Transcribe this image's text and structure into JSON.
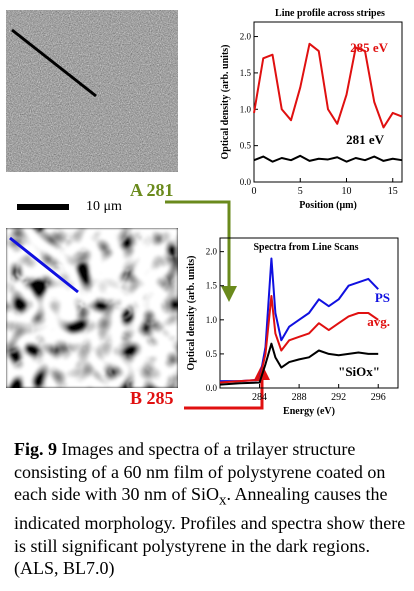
{
  "figure": {
    "label_a": "A 281",
    "label_b": "B 285",
    "scale_bar_label": "10 μm",
    "colors": {
      "red": "#e01010",
      "blue": "#1010e0",
      "olive": "#6a8a1c",
      "black": "#000000"
    }
  },
  "caption": {
    "label": "Fig. 9",
    "text_before": " Images and spectra of a trilayer structure consisting of a 60 nm film of polystyrene coated on each side with 30 nm of SiO",
    "sub": "x",
    "text_after": ". Annealing causes the indicated morphology. Profiles and spectra show there is still significant polystyrene in the dark regions. (ALS, BL7.0)"
  },
  "chart_data": [
    {
      "type": "line",
      "title": "Line profile across stripes",
      "xlabel": "Position (μm)",
      "ylabel": "Optical density (arb. units)",
      "xlim": [
        0,
        16
      ],
      "ylim": [
        0,
        2.2
      ],
      "x_ticks": [
        0,
        5,
        10,
        15
      ],
      "y_ticks": [
        0,
        0.5,
        1.0,
        1.5,
        2.0
      ],
      "series": [
        {
          "name": "285 eV",
          "color": "#e01010",
          "x": [
            0,
            1,
            2,
            3,
            4,
            5,
            6,
            7,
            8,
            9,
            10,
            11,
            12,
            13,
            14,
            15,
            16
          ],
          "y": [
            0.95,
            1.7,
            1.75,
            1.0,
            0.85,
            1.3,
            1.9,
            1.8,
            1.0,
            0.8,
            1.2,
            1.85,
            1.8,
            1.1,
            0.75,
            0.95,
            0.9
          ]
        },
        {
          "name": "281 eV",
          "color": "#000000",
          "x": [
            0,
            1,
            2,
            3,
            4,
            5,
            6,
            7,
            8,
            9,
            10,
            11,
            12,
            13,
            14,
            15,
            16
          ],
          "y": [
            0.3,
            0.35,
            0.28,
            0.33,
            0.3,
            0.36,
            0.29,
            0.32,
            0.31,
            0.34,
            0.28,
            0.33,
            0.3,
            0.35,
            0.29,
            0.32,
            0.3
          ]
        }
      ]
    },
    {
      "type": "line",
      "title": "Spectra from Line Scans",
      "xlabel": "Energy (eV)",
      "ylabel": "Optical density (arb. units)",
      "xlim": [
        280,
        298
      ],
      "ylim": [
        0,
        2.2
      ],
      "x_ticks": [
        284,
        288,
        292,
        296
      ],
      "y_ticks": [
        0,
        0.5,
        1.0,
        1.5,
        2.0
      ],
      "series": [
        {
          "name": "PS",
          "color": "#1010e0",
          "x": [
            280,
            282,
            284,
            284.6,
            285.2,
            285.6,
            286.2,
            287,
            288,
            289,
            290,
            291,
            292,
            293,
            294,
            295,
            296
          ],
          "y": [
            0.1,
            0.1,
            0.12,
            0.6,
            1.9,
            1.1,
            0.7,
            0.9,
            1.0,
            1.1,
            1.3,
            1.2,
            1.3,
            1.5,
            1.55,
            1.6,
            1.45
          ]
        },
        {
          "name": "avg.",
          "color": "#e01010",
          "x": [
            280,
            282,
            284,
            284.6,
            285.2,
            285.6,
            286.2,
            287,
            288,
            289,
            290,
            291,
            292,
            293,
            294,
            295,
            296
          ],
          "y": [
            0.08,
            0.1,
            0.12,
            0.5,
            1.35,
            0.8,
            0.55,
            0.7,
            0.75,
            0.8,
            0.95,
            0.85,
            0.95,
            1.05,
            1.1,
            1.1,
            1.0
          ]
        },
        {
          "name": "\"SiOx\"",
          "color": "#000000",
          "x": [
            280,
            282,
            284,
            284.6,
            285.2,
            285.6,
            286.2,
            287,
            288,
            289,
            290,
            291,
            292,
            293,
            294,
            295,
            296
          ],
          "y": [
            0.05,
            0.07,
            0.08,
            0.35,
            0.65,
            0.45,
            0.3,
            0.38,
            0.42,
            0.45,
            0.55,
            0.5,
            0.48,
            0.5,
            0.52,
            0.5,
            0.5
          ]
        }
      ]
    }
  ]
}
